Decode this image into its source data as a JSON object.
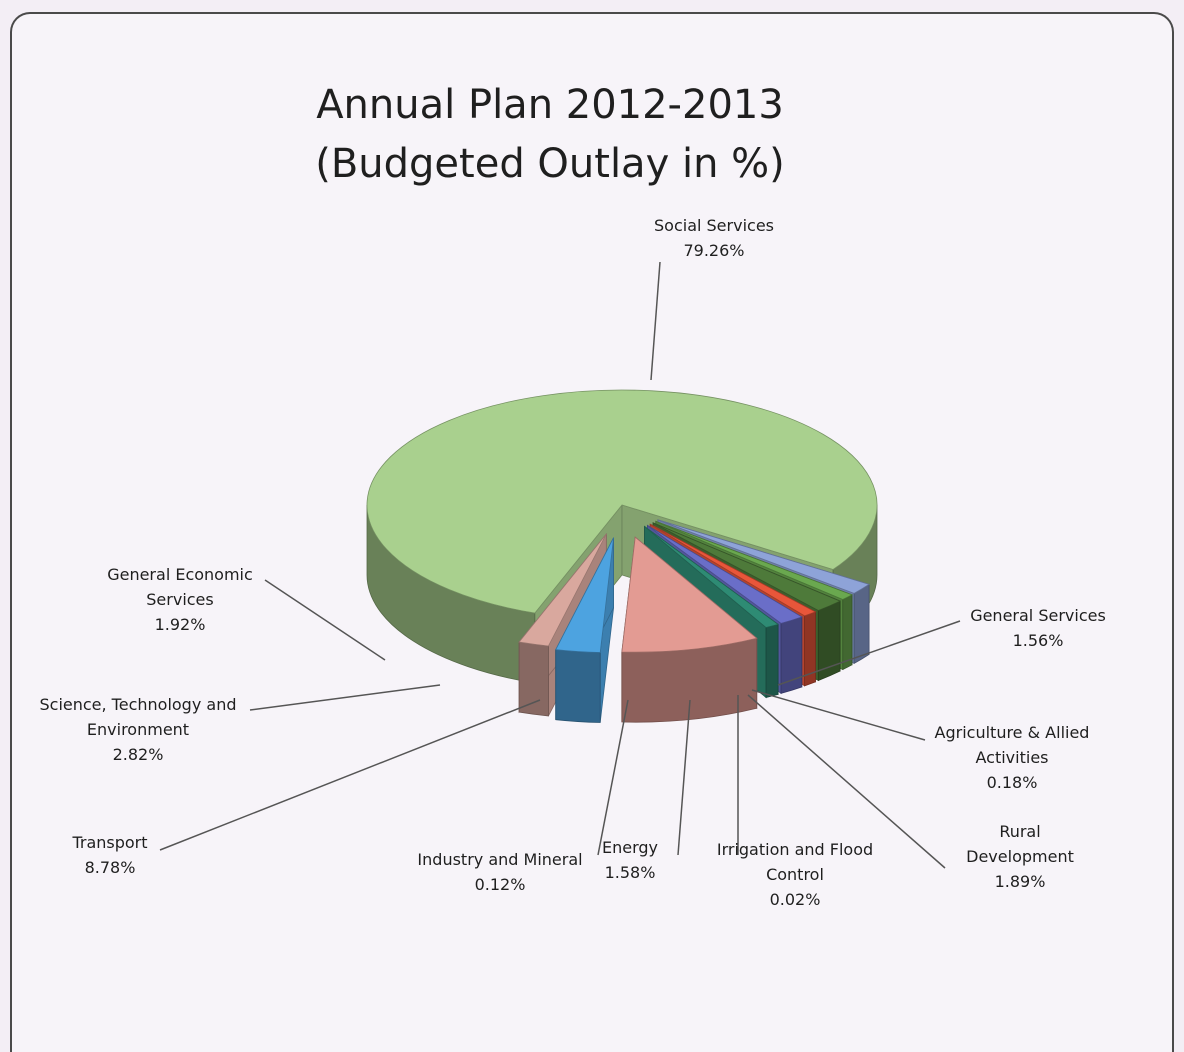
{
  "chart_data": {
    "type": "pie",
    "title_line1": "Annual Plan 2012-2013",
    "title_line2": "(Budgeted Outlay in %)",
    "slices": [
      {
        "label_lines": [
          "Social Services"
        ],
        "pct_text": "79.26%",
        "value": 79.26,
        "color": "#a9d08e"
      },
      {
        "label_lines": [
          "General Services"
        ],
        "pct_text": "1.56%",
        "value": 1.56,
        "color": "#8ea3d8"
      },
      {
        "label_lines": [
          "Agriculture & Allied",
          "Activities"
        ],
        "pct_text": "0.18%",
        "value": 0.18,
        "color": "#6aa84f"
      },
      {
        "label_lines": [
          "Rural",
          "Development"
        ],
        "pct_text": "1.89%",
        "value": 1.89,
        "color": "#4e7a3a"
      },
      {
        "label_lines": [
          "Irrigation and Flood",
          "Control"
        ],
        "pct_text": "0.02%",
        "value": 0.02,
        "color": "#e8563a"
      },
      {
        "label_lines": [
          "Energy"
        ],
        "pct_text": "1.58%",
        "value": 1.58,
        "color": "#6a6ec8"
      },
      {
        "label_lines": [
          "Industry and Mineral"
        ],
        "pct_text": "0.12%",
        "value": 0.12,
        "color": "#2e8b74"
      },
      {
        "label_lines": [
          "Transport"
        ],
        "pct_text": "8.78%",
        "value": 8.78,
        "color": "#e39b93"
      },
      {
        "label_lines": [
          "Science, Technology and",
          "Environment"
        ],
        "pct_text": "2.82%",
        "value": 2.82,
        "color": "#4da3e0"
      },
      {
        "label_lines": [
          "General Economic",
          "Services"
        ],
        "pct_text": "1.92%",
        "value": 1.92,
        "color": "#d9a89e"
      }
    ],
    "legend": "none",
    "style": "3D exploded pie"
  }
}
